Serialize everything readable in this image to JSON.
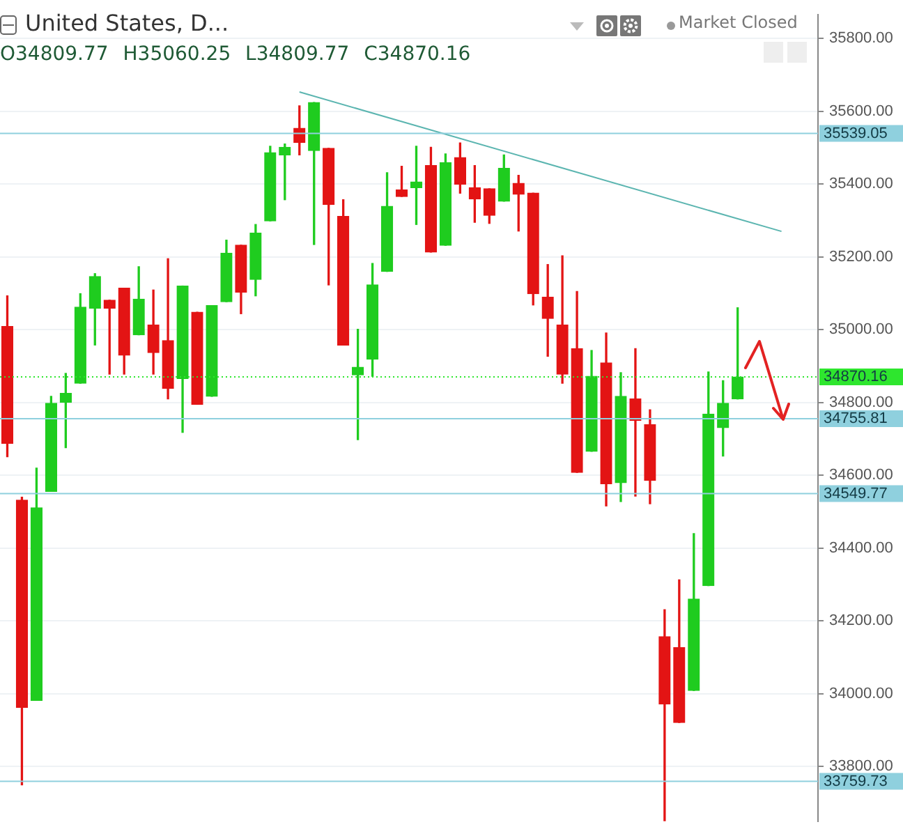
{
  "chart_data": {
    "type": "candlestick",
    "title": "United States, D...",
    "subtitle": "O34809.77 H35060.25 L34809.77 C34870.16",
    "annotations": [
      "Market Closed"
    ],
    "categories": [
      null,
      null,
      null,
      null,
      null,
      null,
      null,
      null,
      null,
      null,
      null,
      null,
      null,
      null,
      null,
      null,
      null,
      null,
      null,
      null,
      null,
      null,
      null,
      null,
      null,
      null,
      null,
      null,
      null,
      null,
      null,
      null,
      null,
      null,
      null,
      null,
      null,
      null,
      null,
      null,
      null,
      null,
      null,
      null,
      null,
      null,
      null,
      null,
      null,
      null,
      null,
      null,
      null,
      null,
      null,
      null
    ],
    "series": [
      {
        "type": "candlestick",
        "ohlc": [
          [
            35009,
            35093,
            34651,
            34688
          ],
          [
            34532,
            34540,
            33750,
            33963
          ],
          [
            33982,
            34620,
            33982,
            34511
          ],
          [
            34556,
            34817,
            34556,
            34798
          ],
          [
            34801,
            34880,
            34676,
            34825
          ],
          [
            34853,
            35099,
            34853,
            35062
          ],
          [
            35059,
            35154,
            34958,
            35146
          ],
          [
            35081,
            35081,
            34878,
            35059
          ],
          [
            35114,
            35114,
            34878,
            34930
          ],
          [
            34986,
            35173,
            34986,
            35084
          ],
          [
            35013,
            35109,
            34878,
            34937
          ],
          [
            34970,
            35195,
            34810,
            34839
          ],
          [
            34866,
            35120,
            34718,
            35120
          ],
          [
            35048,
            35048,
            34795,
            34795
          ],
          [
            34817,
            35066,
            34817,
            35066
          ],
          [
            35077,
            35246,
            35077,
            35210
          ],
          [
            35232,
            35232,
            35044,
            35103
          ],
          [
            35138,
            35289,
            35093,
            35265
          ],
          [
            35299,
            35504,
            35299,
            35486
          ],
          [
            35480,
            35510,
            35357,
            35501
          ],
          [
            35553,
            35615,
            35480,
            35514
          ],
          [
            35492,
            35624,
            35234,
            35624
          ],
          [
            35498,
            35498,
            35123,
            35344
          ],
          [
            35311,
            35357,
            34958,
            34958
          ],
          [
            34876,
            35001,
            34698,
            34897
          ],
          [
            34919,
            35182,
            34872,
            35123
          ],
          [
            35160,
            35431,
            35160,
            35339
          ],
          [
            35384,
            35449,
            35366,
            35366
          ],
          [
            35390,
            35504,
            35289,
            35406
          ],
          [
            35451,
            35501,
            35213,
            35213
          ],
          [
            35232,
            35483,
            35232,
            35459
          ],
          [
            35473,
            35513,
            35375,
            35400
          ],
          [
            35390,
            35451,
            35295,
            35359
          ],
          [
            35387,
            35387,
            35292,
            35314
          ],
          [
            35353,
            35480,
            35353,
            35443
          ],
          [
            35402,
            35424,
            35271,
            35372
          ],
          [
            35375,
            35375,
            35068,
            35099
          ],
          [
            35089,
            35179,
            34927,
            35031
          ],
          [
            35013,
            35203,
            34853,
            34878
          ],
          [
            34948,
            35105,
            34608,
            34608
          ],
          [
            34666,
            34943,
            34666,
            34872
          ],
          [
            34909,
            34991,
            34516,
            34577
          ],
          [
            34580,
            34882,
            34528,
            34817
          ],
          [
            34810,
            34948,
            34543,
            34751
          ],
          [
            34739,
            34780,
            34522,
            34586
          ],
          [
            34157,
            34231,
            33650,
            33972
          ],
          [
            34127,
            34313,
            33921,
            33921
          ],
          [
            34009,
            34440,
            34009,
            34260
          ],
          [
            34297,
            34884,
            34297,
            34768
          ],
          [
            34731,
            34860,
            34653,
            34798
          ],
          [
            34809.77,
            35060.25,
            34809.77,
            34870.16
          ],
          null,
          null,
          null,
          null,
          null
        ],
        "colors": [
          "#e31414",
          "#e31414",
          "#1fcc1f",
          "#1fcc1f",
          "#1fcc1f",
          "#1fcc1f",
          "#1fcc1f",
          "#e31414",
          "#e31414",
          "#1fcc1f",
          "#e31414",
          "#e31414",
          "#1fcc1f",
          "#e31414",
          "#1fcc1f",
          "#1fcc1f",
          "#e31414",
          "#1fcc1f",
          "#1fcc1f",
          "#1fcc1f",
          "#e31414",
          "#1fcc1f",
          "#e31414",
          "#e31414",
          "#1fcc1f",
          "#1fcc1f",
          "#1fcc1f",
          "#e31414",
          "#1fcc1f",
          "#e31414",
          "#1fcc1f",
          "#e31414",
          "#e31414",
          "#e31414",
          "#1fcc1f",
          "#e31414",
          "#e31414",
          "#e31414",
          "#e31414",
          "#e31414",
          "#1fcc1f",
          "#e31414",
          "#1fcc1f",
          "#e31414",
          "#e31414",
          "#e31414",
          "#e31414",
          "#1fcc1f",
          "#1fcc1f",
          "#1fcc1f",
          "#1fcc1f",
          null,
          null,
          null,
          null,
          null
        ]
      },
      {
        "type": "line",
        "color": "#5bb5b0",
        "values": [
          null,
          null,
          null,
          null,
          null,
          null,
          null,
          null,
          null,
          null,
          null,
          null,
          null,
          null,
          null,
          null,
          null,
          null,
          null,
          null,
          35653,
          null,
          null,
          null,
          null,
          null,
          null,
          null,
          null,
          null,
          null,
          null,
          null,
          null,
          null,
          null,
          null,
          null,
          null,
          null,
          null,
          null,
          null,
          null,
          null,
          null,
          null,
          null,
          null,
          null,
          null,
          null,
          null,
          35270,
          null,
          null
        ]
      }
    ],
    "ylim": [
      33650,
      35865
    ],
    "yticks": [
      {
        "value": 33800,
        "label": "33800.00"
      },
      {
        "value": 34000,
        "label": "34000.00"
      },
      {
        "value": 34200,
        "label": "34200.00"
      },
      {
        "value": 34400,
        "label": "34400.00"
      },
      {
        "value": 34600,
        "label": "34600.00"
      },
      {
        "value": 34800,
        "label": "34800.00"
      },
      {
        "value": 35000,
        "label": "35000.00"
      },
      {
        "value": 35200,
        "label": "35200.00"
      },
      {
        "value": 35400,
        "label": "35400.00"
      },
      {
        "value": 35600,
        "label": "35600.00"
      },
      {
        "value": 35800,
        "label": "35800.00"
      }
    ],
    "grid": "y",
    "ref_lines": [
      {
        "axis": "y",
        "value": 35539.05,
        "label": "35539.05",
        "color": "#8fd0de"
      },
      {
        "axis": "y",
        "value": 34870.16,
        "label": "34870.16",
        "color": "#2ee62e",
        "line_style": "dotted"
      },
      {
        "axis": "y",
        "value": 34755.81,
        "label": "34755.81",
        "color": "#8fd0de"
      },
      {
        "axis": "y",
        "value": 34549.77,
        "label": "34549.77",
        "color": "#8fd0de"
      },
      {
        "axis": "y",
        "value": 33759.73,
        "label": "33759.73",
        "color": "#8fd0de"
      }
    ]
  }
}
